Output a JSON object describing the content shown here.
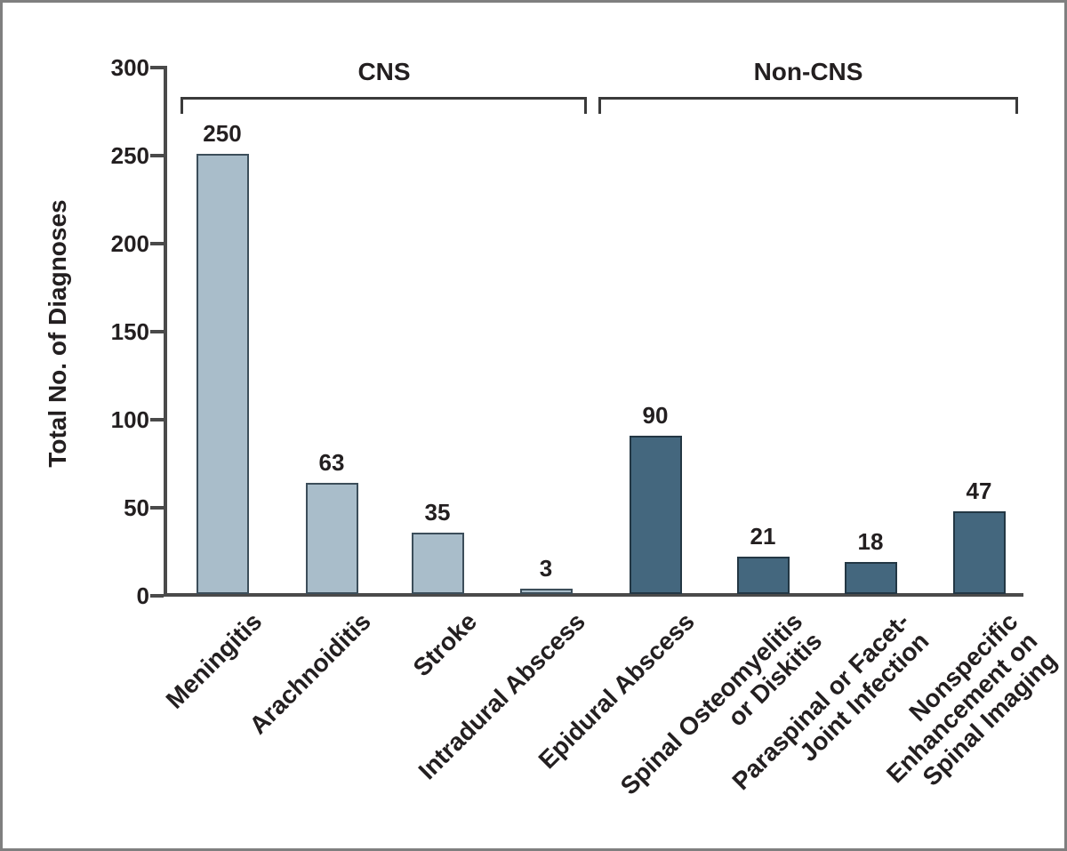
{
  "chart_data": {
    "type": "bar",
    "title": "",
    "ylabel": "Total No. of Diagnoses",
    "xlabel": "",
    "ylim": [
      0,
      300
    ],
    "yticks": [
      0,
      50,
      100,
      150,
      200,
      250,
      300
    ],
    "grid": false,
    "legend": "none",
    "groups": [
      {
        "name": "CNS",
        "bar_color": "#a9bdca",
        "bar_border": "#3c4e5a"
      },
      {
        "name": "Non-CNS",
        "bar_color": "#44677e",
        "bar_border": "#233744"
      }
    ],
    "bars": [
      {
        "category": "Meningitis",
        "lines": [
          "Meningitis"
        ],
        "value": 250,
        "group": "CNS"
      },
      {
        "category": "Arachnoiditis",
        "lines": [
          "Arachnoiditis"
        ],
        "value": 63,
        "group": "CNS"
      },
      {
        "category": "Stroke",
        "lines": [
          "Stroke"
        ],
        "value": 35,
        "group": "CNS"
      },
      {
        "category": "Intradural Abscess",
        "lines": [
          "Intradural Abscess"
        ],
        "value": 3,
        "group": "CNS"
      },
      {
        "category": "Epidural Abscess",
        "lines": [
          "Epidural Abscess"
        ],
        "value": 90,
        "group": "Non-CNS"
      },
      {
        "category": "Spinal Osteomyelitis or Diskitis",
        "lines": [
          "Spinal Osteomyelitis",
          "or Diskitis"
        ],
        "value": 21,
        "group": "Non-CNS"
      },
      {
        "category": "Paraspinal or Facet-Joint Infection",
        "lines": [
          "Paraspinal or Facet-",
          "Joint Infection"
        ],
        "value": 18,
        "group": "Non-CNS"
      },
      {
        "category": "Nonspecific Enhancement on Spinal Imaging",
        "lines": [
          "Nonspecific",
          "Enhancement on",
          "Spinal Imaging"
        ],
        "value": 47,
        "group": "Non-CNS"
      }
    ],
    "colors": {
      "background": "#ffffff",
      "frame_border": "#7f7f7f",
      "axis": "#4a4a4a",
      "bracket": "#3a3a3a",
      "text": "#231f20"
    }
  }
}
